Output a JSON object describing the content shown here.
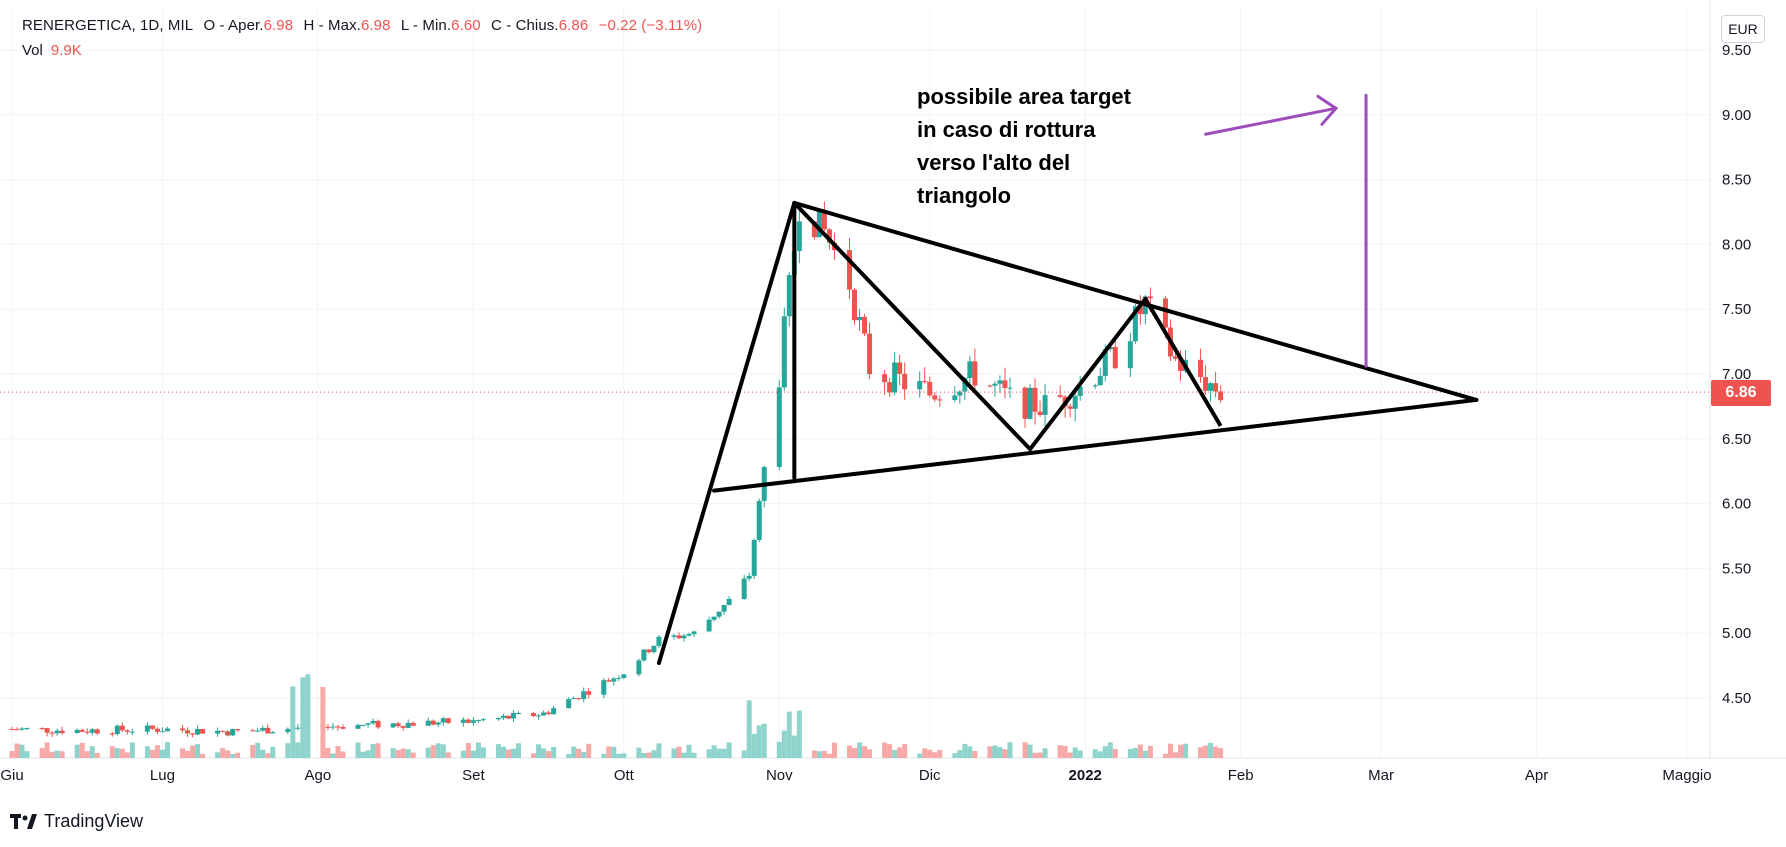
{
  "legend": {
    "symbol": "RENERGETICA, 1D, MIL",
    "open_label": "O - Aper.",
    "open_value": "6.98",
    "high_label": "H - Max.",
    "high_value": "6.98",
    "low_label": "L - Min.",
    "low_value": "6.60",
    "close_label": "C - Chius.",
    "close_value": "6.86",
    "change": "−0.22 (−3.11%)",
    "vol_label": "Vol",
    "vol_value": "9.9K"
  },
  "currency": "EUR",
  "last_price_label": "6.86",
  "annotation": "possibile area target\nin caso di rottura\nverso l'alto del\ntriangolo",
  "brand": "TradingView",
  "colors": {
    "up": "#26a69a",
    "down": "#ef5350",
    "up_volume": "#8ed4cd",
    "down_volume": "#f7a9a7",
    "drawing": "#000000",
    "target_arrow": "#9c4dbb",
    "grid": "#f0f3fa",
    "axis_text": "#131722"
  },
  "chart_data": {
    "type": "candlestick",
    "title": "",
    "ylim": [
      4.1,
      9.6
    ],
    "yticks": [
      "9.50",
      "9.00",
      "8.50",
      "8.00",
      "7.50",
      "7.00",
      "6.50",
      "6.00",
      "5.50",
      "5.00",
      "4.50"
    ],
    "xticks": [
      {
        "label": "Giu",
        "date": "2021-06-01"
      },
      {
        "label": "Lug",
        "date": "2021-07-01"
      },
      {
        "label": "Ago",
        "date": "2021-08-01"
      },
      {
        "label": "Set",
        "date": "2021-09-01"
      },
      {
        "label": "Ott",
        "date": "2021-10-01"
      },
      {
        "label": "Nov",
        "date": "2021-11-01"
      },
      {
        "label": "Dic",
        "date": "2021-12-01"
      },
      {
        "label": "2022",
        "date": "2022-01-01",
        "bold": true
      },
      {
        "label": "Feb",
        "date": "2022-02-01"
      },
      {
        "label": "Mar",
        "date": "2022-03-01"
      },
      {
        "label": "Apr",
        "date": "2022-04-01"
      },
      {
        "label": "Maggio",
        "date": "2022-05-01"
      }
    ],
    "last_close": 6.86,
    "series": [
      {
        "name": "price",
        "points": [
          [
            "2021-06-01",
            4.26
          ],
          [
            "2021-06-15",
            4.25
          ],
          [
            "2021-07-01",
            4.26
          ],
          [
            "2021-07-15",
            4.24
          ],
          [
            "2021-08-01",
            4.28
          ],
          [
            "2021-08-16",
            4.3
          ],
          [
            "2021-09-01",
            4.32
          ],
          [
            "2021-09-15",
            4.38
          ],
          [
            "2021-10-01",
            4.7
          ],
          [
            "2021-10-08",
            4.95
          ],
          [
            "2021-10-15",
            5.0
          ],
          [
            "2021-10-22",
            5.25
          ],
          [
            "2021-10-26",
            5.45
          ],
          [
            "2021-10-28",
            6.0
          ],
          [
            "2021-11-01",
            7.0
          ],
          [
            "2021-11-05",
            8.3
          ],
          [
            "2021-11-10",
            8.1
          ],
          [
            "2021-11-15",
            7.7
          ],
          [
            "2021-11-19",
            7.05
          ],
          [
            "2021-11-25",
            6.95
          ],
          [
            "2021-12-01",
            6.85
          ],
          [
            "2021-12-10",
            7.0
          ],
          [
            "2021-12-17",
            6.8
          ],
          [
            "2021-12-24",
            6.75
          ],
          [
            "2021-12-31",
            6.9
          ],
          [
            "2022-01-07",
            7.15
          ],
          [
            "2022-01-13",
            7.55
          ],
          [
            "2022-01-19",
            7.1
          ],
          [
            "2022-01-25",
            6.95
          ],
          [
            "2022-01-28",
            6.86
          ]
        ]
      }
    ],
    "drawings": {
      "triangle_upper": [
        [
          "2021-11-04",
          8.32
        ],
        [
          "2022-03-20",
          6.8
        ]
      ],
      "triangle_lower": [
        [
          "2021-10-19",
          6.1
        ],
        [
          "2022-03-20",
          6.8
        ]
      ],
      "pole_up": [
        [
          "2021-10-08",
          4.77
        ],
        [
          "2021-11-04",
          8.32
        ]
      ],
      "pole_vertical": [
        [
          "2021-11-04",
          8.32
        ],
        [
          "2021-11-04",
          6.2
        ]
      ],
      "zigzag": [
        [
          "2021-11-04",
          8.32
        ],
        [
          "2021-12-21",
          6.42
        ],
        [
          "2022-01-13",
          7.58
        ],
        [
          "2022-01-28",
          6.6
        ]
      ],
      "target_line": [
        [
          "2022-02-26",
          9.15
        ],
        [
          "2022-02-26",
          7.06
        ]
      ],
      "target_arrow": [
        [
          "2022-01-25",
          8.85
        ],
        [
          "2022-02-20",
          9.05
        ]
      ]
    }
  }
}
